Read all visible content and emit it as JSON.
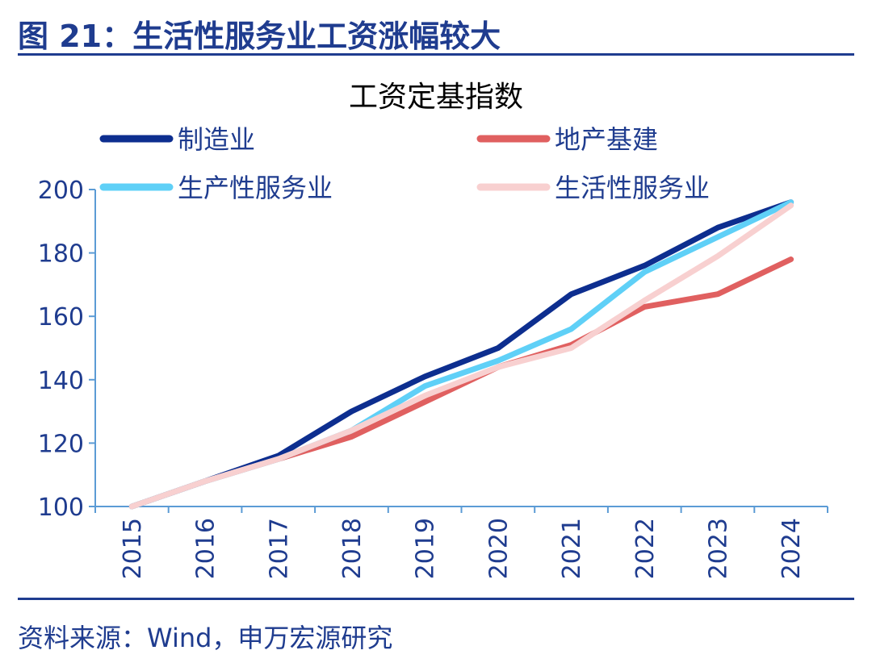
{
  "figure": {
    "title": "图 21：生活性服务业工资涨幅较大",
    "source": "资料来源：Wind，申万宏源研究"
  },
  "colors": {
    "brand": "#1f3c8f",
    "axis": "#5b9bd5"
  },
  "chart_data": {
    "type": "line",
    "title": "工资定基指数",
    "xlabel": "",
    "ylabel": "",
    "categories": [
      "2015",
      "2016",
      "2017",
      "2018",
      "2019",
      "2020",
      "2021",
      "2022",
      "2023",
      "2024"
    ],
    "ylim": [
      100,
      200
    ],
    "yticks": [
      100,
      120,
      140,
      160,
      180,
      200
    ],
    "grid": false,
    "legend_position": "top",
    "series": [
      {
        "name": "制造业",
        "color": "#0d2e8f",
        "values": [
          100,
          108,
          116,
          130,
          141,
          150,
          167,
          176,
          188,
          196
        ]
      },
      {
        "name": "地产基建",
        "color": "#e06060",
        "values": [
          100,
          108,
          115,
          122,
          133,
          144,
          151,
          163,
          167,
          178
        ]
      },
      {
        "name": "生产性服务业",
        "color": "#5fd0f7",
        "values": [
          100,
          108,
          115,
          124,
          138,
          146,
          156,
          174,
          185,
          196
        ]
      },
      {
        "name": "生活性服务业",
        "color": "#f8d0d0",
        "values": [
          100,
          108,
          115,
          124,
          135,
          144,
          150,
          165,
          179,
          195
        ]
      }
    ]
  }
}
